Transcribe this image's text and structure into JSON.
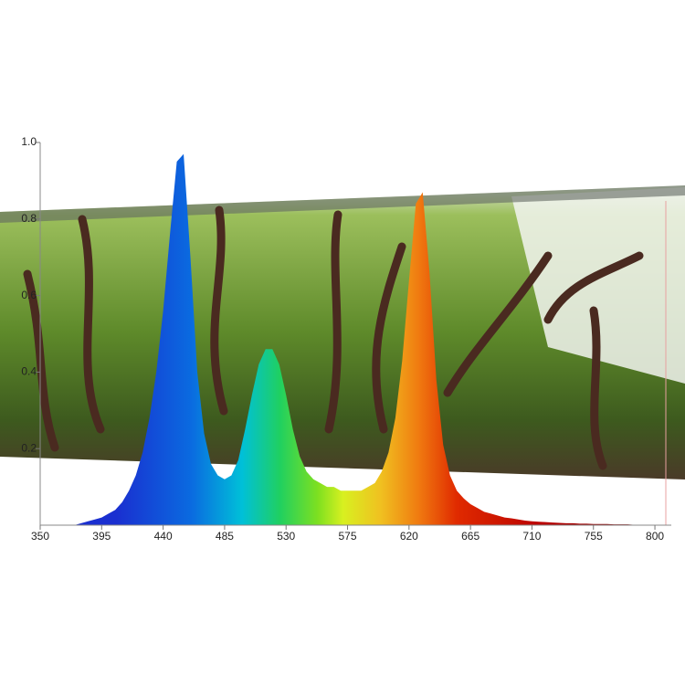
{
  "chart_data": {
    "type": "area",
    "x": [
      350,
      355,
      360,
      365,
      370,
      375,
      380,
      385,
      390,
      395,
      400,
      405,
      410,
      415,
      420,
      425,
      430,
      435,
      440,
      445,
      450,
      455,
      460,
      465,
      470,
      475,
      480,
      485,
      490,
      495,
      500,
      505,
      510,
      515,
      520,
      525,
      530,
      535,
      540,
      545,
      550,
      555,
      560,
      565,
      570,
      575,
      580,
      585,
      590,
      595,
      600,
      605,
      610,
      615,
      620,
      625,
      630,
      635,
      640,
      645,
      650,
      655,
      660,
      665,
      670,
      675,
      680,
      685,
      690,
      695,
      700,
      705,
      710,
      715,
      720,
      725,
      730,
      735,
      740,
      745,
      750,
      755,
      760,
      765,
      770,
      775,
      780,
      785,
      790,
      795,
      800
    ],
    "values": [
      0,
      0,
      0,
      0,
      0,
      0,
      0.005,
      0.01,
      0.015,
      0.02,
      0.03,
      0.04,
      0.06,
      0.09,
      0.13,
      0.19,
      0.28,
      0.4,
      0.56,
      0.76,
      0.95,
      0.97,
      0.7,
      0.4,
      0.24,
      0.16,
      0.13,
      0.12,
      0.13,
      0.17,
      0.25,
      0.34,
      0.42,
      0.46,
      0.46,
      0.42,
      0.34,
      0.25,
      0.18,
      0.14,
      0.12,
      0.11,
      0.1,
      0.1,
      0.09,
      0.09,
      0.09,
      0.09,
      0.1,
      0.11,
      0.14,
      0.19,
      0.28,
      0.43,
      0.64,
      0.84,
      0.87,
      0.66,
      0.38,
      0.21,
      0.13,
      0.09,
      0.07,
      0.055,
      0.045,
      0.035,
      0.03,
      0.025,
      0.02,
      0.018,
      0.015,
      0.012,
      0.01,
      0.009,
      0.008,
      0.007,
      0.006,
      0.005,
      0.005,
      0.004,
      0.004,
      0.003,
      0.003,
      0.003,
      0.002,
      0.002,
      0.002,
      0.001,
      0.001,
      0.001,
      0.001
    ],
    "xlim": [
      350,
      812
    ],
    "ylim": [
      0,
      1
    ],
    "xticks": [
      350,
      395,
      440,
      485,
      530,
      575,
      620,
      665,
      710,
      755,
      800
    ],
    "yticks": [
      0.2,
      0.4,
      0.6,
      0.8,
      {
        "value": 1,
        "label": "1.0"
      }
    ]
  }
}
